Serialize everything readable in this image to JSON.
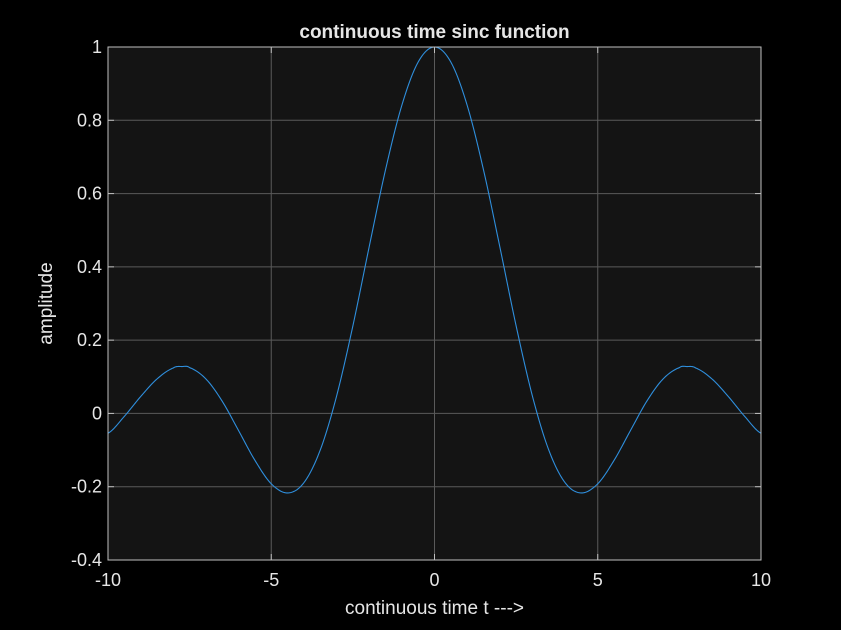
{
  "colors": {
    "figure_background": "#000000",
    "axes_background": "#141414",
    "grid": "#5a5a5a",
    "axis_line": "#bfbfbf",
    "text": "#e6e6e6",
    "series": "#2f8fdd"
  },
  "chart_data": {
    "type": "line",
    "title": "continuous time sinc function",
    "xlabel": "continuous time t --->",
    "ylabel": "amplitude",
    "xlim": [
      -10,
      10
    ],
    "ylim": [
      -0.4,
      1
    ],
    "xticks": [
      -10,
      -5,
      0,
      5,
      10
    ],
    "xtick_labels": [
      "-10",
      "-5",
      "0",
      "5",
      "10"
    ],
    "yticks": [
      -0.4,
      -0.2,
      0,
      0.2,
      0.4,
      0.6,
      0.8,
      1
    ],
    "ytick_labels": [
      "-0.4",
      "-0.2",
      "0",
      "0.2",
      "0.4",
      "0.6",
      "0.8",
      "1"
    ],
    "grid": true,
    "legend": "none",
    "series": [
      {
        "x": [
          -10,
          -9.5,
          -9,
          -8.5,
          -8,
          -7.725,
          -7.5,
          -7,
          -6.5,
          -6,
          -5.5,
          -5,
          -4.493,
          -4,
          -3.5,
          -3,
          -2.5,
          -2,
          -1.5,
          -1,
          -0.5,
          0,
          0.5,
          1,
          1.5,
          2,
          2.5,
          3,
          3.5,
          4,
          4.493,
          5,
          5.5,
          6,
          6.5,
          7,
          7.5,
          7.725,
          8,
          8.5,
          9,
          9.5,
          10
        ],
        "y": [
          -0.054,
          -0.008,
          0.046,
          0.094,
          0.124,
          0.128,
          0.125,
          0.094,
          0.033,
          -0.047,
          -0.128,
          -0.192,
          -0.217,
          -0.189,
          -0.1,
          0.047,
          0.239,
          0.455,
          0.665,
          0.841,
          0.959,
          1.0,
          0.959,
          0.841,
          0.665,
          0.455,
          0.239,
          0.047,
          -0.1,
          -0.189,
          -0.217,
          -0.192,
          -0.128,
          -0.047,
          0.033,
          0.094,
          0.125,
          0.128,
          0.124,
          0.094,
          0.046,
          -0.008,
          -0.054
        ]
      }
    ]
  }
}
